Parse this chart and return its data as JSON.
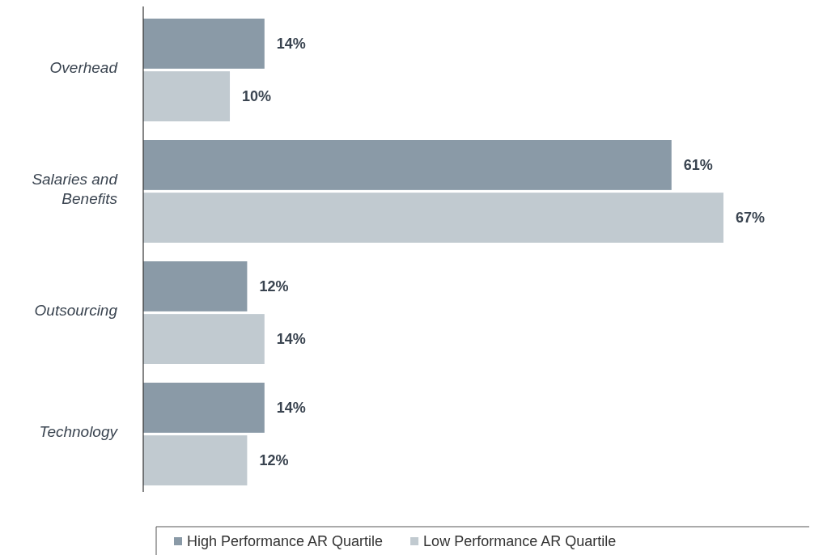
{
  "chart_data": {
    "type": "bar",
    "orientation": "horizontal",
    "categories": [
      "Overhead",
      "Salaries and Benefits",
      "Outsourcing",
      "Technology"
    ],
    "series": [
      {
        "name": "High Performance AR Quartile",
        "color": "#8a9aa7",
        "values": [
          14,
          61,
          12,
          14
        ],
        "value_labels": [
          "14%",
          "61%",
          "12%",
          "14%"
        ]
      },
      {
        "name": "Low Performance AR Quartile",
        "color": "#c1cad0",
        "values": [
          10,
          67,
          14,
          12
        ],
        "value_labels": [
          "10%",
          "67%",
          "14%",
          "12%"
        ]
      }
    ],
    "legend": "bottom",
    "tick_labels": "y"
  }
}
